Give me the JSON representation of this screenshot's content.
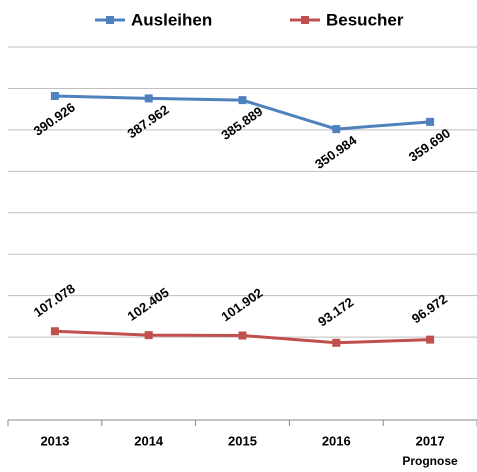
{
  "chart_data": {
    "type": "line",
    "categories": [
      "2013",
      "2014",
      "2015",
      "2016",
      "2017"
    ],
    "annotation": "Prognose",
    "series": [
      {
        "name": "Ausleihen",
        "color": "#4f81bd",
        "values": [
          390926,
          387962,
          385889,
          350984,
          359690
        ],
        "value_labels": [
          "390.926",
          "387.962",
          "385.889",
          "350.984",
          "359.690"
        ]
      },
      {
        "name": "Besucher",
        "color": "#c0504d",
        "values": [
          107078,
          102405,
          101902,
          93172,
          96972
        ],
        "value_labels": [
          "107.078",
          "102.405",
          "101.902",
          "93.172",
          "96.972"
        ]
      }
    ],
    "ylim": [
      0,
      450000
    ],
    "yticks": [
      0,
      50000,
      100000,
      150000,
      200000,
      250000,
      300000,
      350000,
      400000,
      450000
    ],
    "grid": true
  }
}
